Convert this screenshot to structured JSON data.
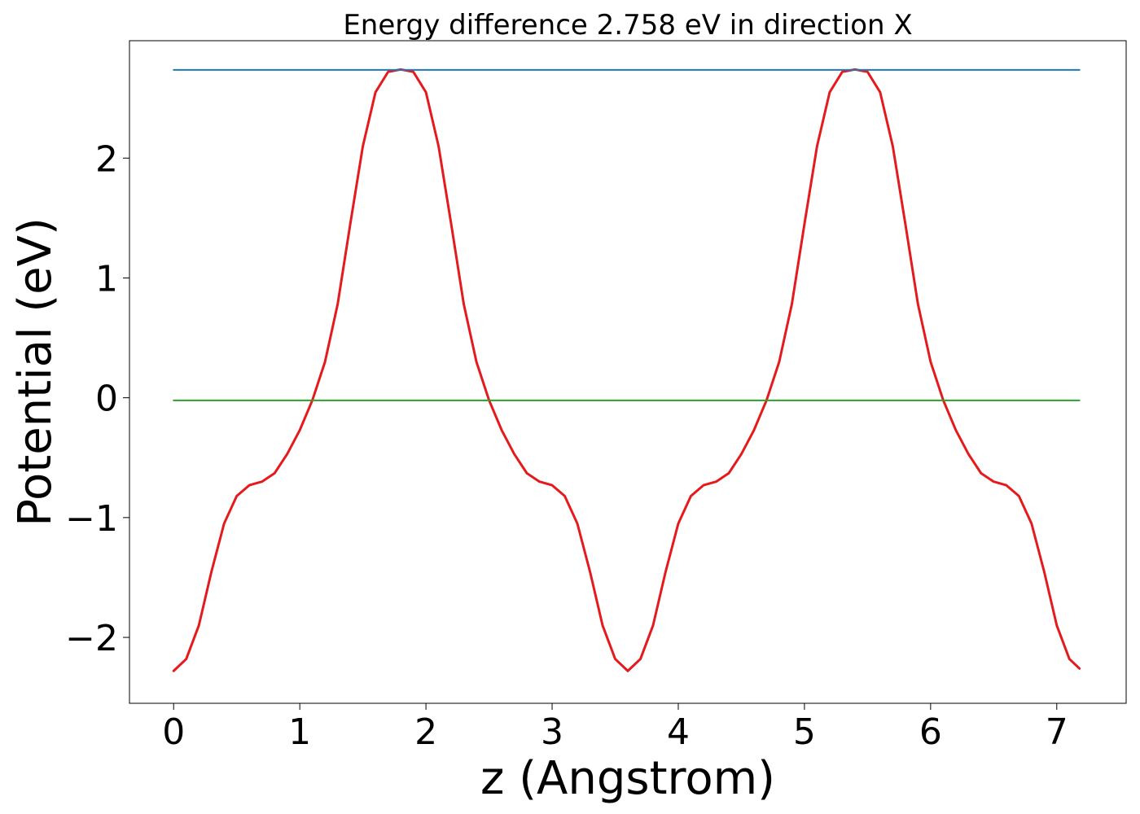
{
  "chart_data": {
    "type": "line",
    "title": "Energy difference 2.758 eV in direction X",
    "xlabel": "z (Angstrom)",
    "ylabel": "Potential (eV)",
    "xlim": [
      -0.35,
      7.55
    ],
    "ylim": [
      -2.55,
      2.98
    ],
    "xticks": [
      0,
      1,
      2,
      3,
      4,
      5,
      6,
      7
    ],
    "xtick_labels": [
      "0",
      "1",
      "2",
      "3",
      "4",
      "5",
      "6",
      "7"
    ],
    "yticks": [
      -2,
      -1,
      0,
      1,
      2
    ],
    "ytick_labels": [
      "−2",
      "−1",
      "0",
      "1",
      "2"
    ],
    "grid": false,
    "series": [
      {
        "color": "#e41a1c",
        "x": [
          0,
          0.1,
          0.2,
          0.3,
          0.4,
          0.5,
          0.6,
          0.7,
          0.8,
          0.9,
          1.0,
          1.1,
          1.2,
          1.3,
          1.4,
          1.5,
          1.6,
          1.7,
          1.8,
          1.9,
          2.0,
          2.1,
          2.2,
          2.3,
          2.4,
          2.5,
          2.6,
          2.7,
          2.8,
          2.9,
          3.0,
          3.1,
          3.2,
          3.3,
          3.4,
          3.5,
          3.6,
          3.7,
          3.8,
          3.9,
          4.0,
          4.1,
          4.2,
          4.3,
          4.4,
          4.5,
          4.6,
          4.7,
          4.8,
          4.9,
          5.0,
          5.1,
          5.2,
          5.3,
          5.4,
          5.5,
          5.6,
          5.7,
          5.8,
          5.9,
          6.0,
          6.1,
          6.2,
          6.3,
          6.4,
          6.5,
          6.6,
          6.7,
          6.8,
          6.9,
          7.0,
          7.1,
          7.18
        ],
        "y": [
          -2.28,
          -2.18,
          -1.9,
          -1.45,
          -1.05,
          -0.82,
          -0.73,
          -0.7,
          -0.63,
          -0.47,
          -0.27,
          -0.02,
          0.3,
          0.78,
          1.45,
          2.1,
          2.55,
          2.72,
          2.74,
          2.72,
          2.55,
          2.1,
          1.45,
          0.78,
          0.3,
          -0.02,
          -0.27,
          -0.47,
          -0.63,
          -0.7,
          -0.73,
          -0.82,
          -1.05,
          -1.45,
          -1.9,
          -2.18,
          -2.28,
          -2.18,
          -1.9,
          -1.45,
          -1.05,
          -0.82,
          -0.73,
          -0.7,
          -0.63,
          -0.47,
          -0.27,
          -0.02,
          0.3,
          0.78,
          1.45,
          2.1,
          2.55,
          2.72,
          2.74,
          2.72,
          2.55,
          2.1,
          1.45,
          0.78,
          0.3,
          -0.02,
          -0.27,
          -0.47,
          -0.63,
          -0.7,
          -0.73,
          -0.82,
          -1.05,
          -1.45,
          -1.9,
          -2.18,
          -2.26
        ]
      },
      {
        "color": "#1f77b4",
        "x": [
          0,
          7.18
        ],
        "y": [
          2.736,
          2.736
        ]
      },
      {
        "color": "#2ca02c",
        "x": [
          0,
          7.18
        ],
        "y": [
          -0.022,
          -0.022
        ]
      }
    ]
  }
}
